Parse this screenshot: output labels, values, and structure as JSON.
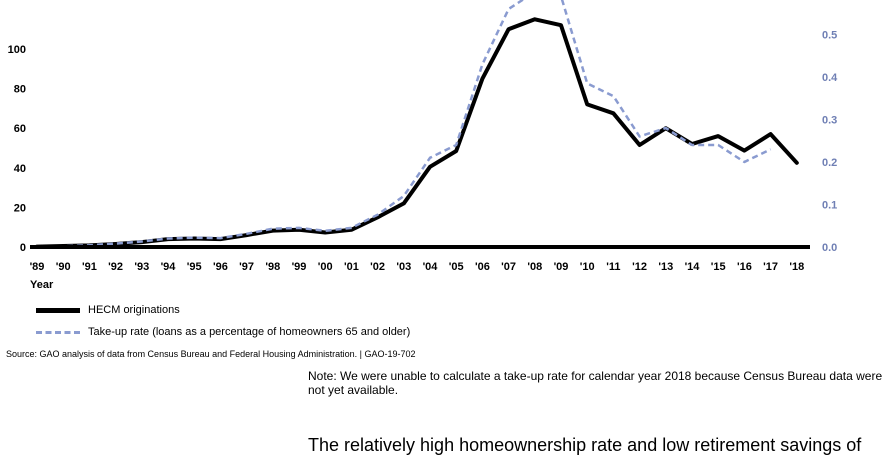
{
  "chart_data": {
    "type": "line",
    "categories": [
      "'89",
      "'90",
      "'91",
      "'92",
      "'93",
      "'94",
      "'95",
      "'96",
      "'97",
      "'98",
      "'99",
      "'00",
      "'01",
      "'02",
      "'03",
      "'04",
      "'05",
      "'06",
      "'07",
      "'08",
      "'09",
      "'10",
      "'11",
      "'12",
      "'13",
      "'14",
      "'15",
      "'16",
      "'17",
      "'18"
    ],
    "xlabel": "Year",
    "ylim": [
      0,
      100
    ],
    "y_ticks": [
      "0",
      "20",
      "40",
      "60",
      "80",
      "100"
    ],
    "y2lim": [
      0,
      0.58
    ],
    "y2_ticks": [
      "0.0",
      "0.1",
      "0.2",
      "0.3",
      "0.4",
      "0.5"
    ],
    "series": [
      {
        "name": "HECM originations",
        "axis": "left",
        "color": "#000000",
        "style": "solid",
        "values": [
          0.2,
          0.5,
          0.8,
          1.5,
          2.5,
          4,
          4.3,
          4,
          6,
          8.3,
          8.7,
          7.3,
          8.7,
          15,
          22,
          40.5,
          48.5,
          85,
          110,
          115,
          112,
          72,
          67.5,
          51.5,
          60,
          52,
          56,
          48.7,
          57,
          42.5
        ]
      },
      {
        "name": "Take-up rate (loans as a percentage of homeowners 65 and older)",
        "axis": "right",
        "color": "#8a9bd0",
        "style": "dashed",
        "values": [
          0.001,
          0.002,
          0.004,
          0.008,
          0.013,
          0.02,
          0.022,
          0.021,
          0.031,
          0.043,
          0.045,
          0.038,
          0.045,
          0.076,
          0.12,
          0.21,
          0.24,
          0.43,
          0.56,
          0.6,
          0.59,
          0.385,
          0.355,
          0.26,
          0.28,
          0.24,
          0.24,
          0.2,
          0.23,
          null
        ]
      }
    ]
  },
  "legend": {
    "hecm": "HECM originations",
    "takeup": "Take-up rate (loans as a percentage of homeowners 65 and older)"
  },
  "source": "Source: GAO analysis of data from Census Bureau and Federal Housing Administration.  |  GAO-19-702",
  "note": "Note: We were unable to calculate a take-up rate for calendar year 2018 because Census Bureau data were not yet available.",
  "body_text": "The relatively high homeownership rate and low retirement savings of"
}
